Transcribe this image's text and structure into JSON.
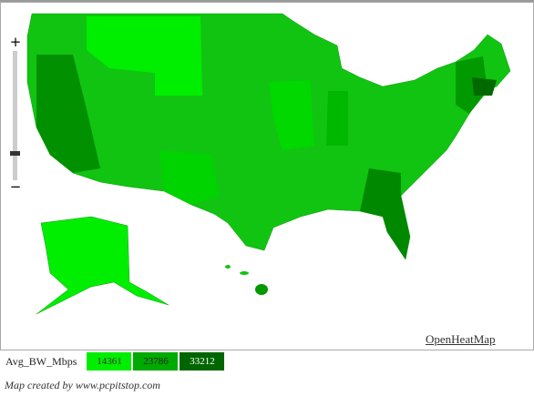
{
  "legend": {
    "title": "Avg_BW_Mbps",
    "items": [
      {
        "value": 14361,
        "color": "#00ee00",
        "text_color": "#333"
      },
      {
        "value": 23786,
        "color": "#00aa00",
        "text_color": "#222"
      },
      {
        "value": 33212,
        "color": "#006600",
        "text_color": "#fff"
      }
    ]
  },
  "links": {
    "openheatmap": "OpenHeatMap"
  },
  "footer": {
    "credit": "Map created by www.pcpitstop.com"
  }
}
